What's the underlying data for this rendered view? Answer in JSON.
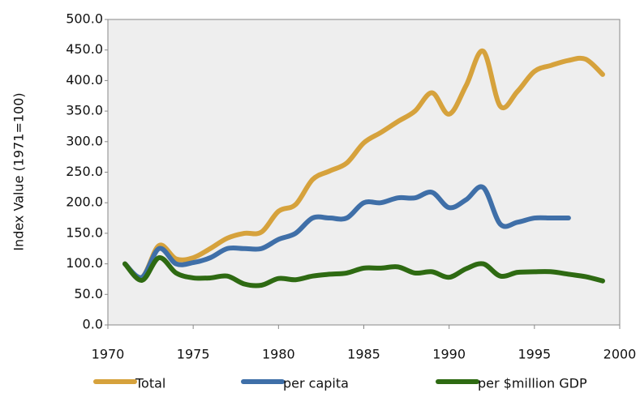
{
  "chart_data": {
    "type": "line",
    "y_label": "Index Value (1971=100)",
    "x": [
      1971,
      1972,
      1973,
      1974,
      1975,
      1976,
      1977,
      1978,
      1979,
      1980,
      1981,
      1982,
      1983,
      1984,
      1985,
      1986,
      1987,
      1988,
      1989,
      1990,
      1991,
      1992,
      1993,
      1994,
      1995,
      1996,
      1997,
      1998,
      1999
    ],
    "series": [
      {
        "name": "Total",
        "color": "#d6a23c",
        "values": [
          100,
          78,
          130,
          108,
          110,
          125,
          142,
          150,
          152,
          186,
          197,
          238,
          252,
          265,
          298,
          315,
          333,
          350,
          380,
          345,
          392,
          448,
          358,
          382,
          415,
          425,
          433,
          435,
          410
        ]
      },
      {
        "name": "per capita",
        "color": "#3f6fa8",
        "values": [
          100,
          78,
          125,
          100,
          102,
          110,
          125,
          125,
          125,
          140,
          150,
          175,
          175,
          175,
          200,
          200,
          208,
          208,
          217,
          192,
          205,
          225,
          165,
          168,
          175,
          175,
          175,
          null,
          null
        ]
      },
      {
        "name": "per $million GDP",
        "color": "#2e6a12",
        "values": [
          100,
          73,
          110,
          85,
          77,
          77,
          80,
          67,
          65,
          76,
          74,
          80,
          83,
          85,
          93,
          93,
          95,
          85,
          87,
          78,
          92,
          100,
          80,
          86,
          87,
          87,
          83,
          79,
          72
        ]
      }
    ],
    "xlim": [
      1970,
      2000
    ],
    "xticks": [
      1970,
      1975,
      1980,
      1985,
      1990,
      1995,
      2000
    ],
    "ylim": [
      0,
      500
    ],
    "yticks": [
      {
        "value": 0,
        "label": "0.0"
      },
      {
        "value": 50,
        "label": "50.0"
      },
      {
        "value": 100,
        "label": "100.0"
      },
      {
        "value": 150,
        "label": "150.0"
      },
      {
        "value": 200,
        "label": "200.0"
      },
      {
        "value": 250,
        "label": "250.0"
      },
      {
        "value": 300,
        "label": "300.0"
      },
      {
        "value": 350,
        "label": "350.0"
      },
      {
        "value": 400,
        "label": "400.0"
      },
      {
        "value": 450,
        "label": "450.0"
      },
      {
        "value": 500,
        "label": "500.0"
      }
    ],
    "grid": false,
    "legend": "bottom",
    "smooth": true
  }
}
